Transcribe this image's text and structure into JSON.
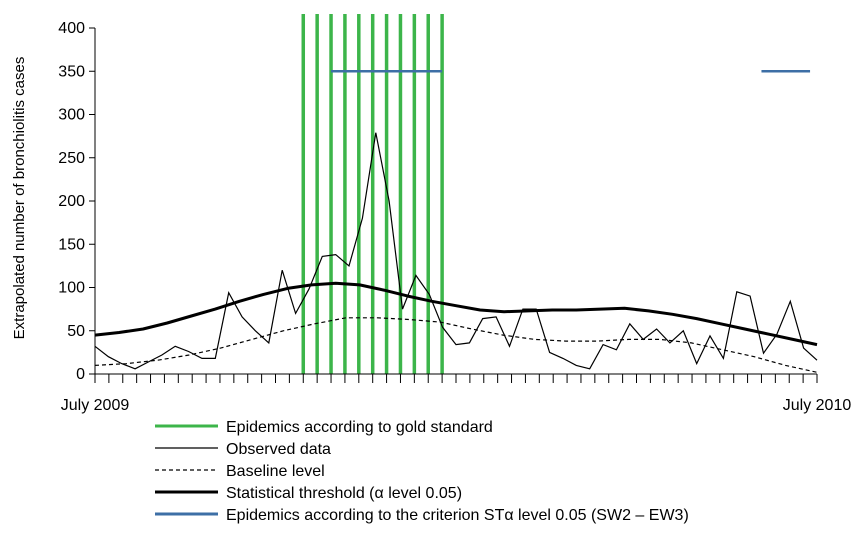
{
  "chart_data": {
    "type": "line",
    "ylabel": "Extrapolated number of bronchiolitis cases",
    "y_ticks": [
      0,
      50,
      100,
      150,
      200,
      250,
      300,
      350,
      400
    ],
    "ylim": [
      0,
      400
    ],
    "x_tick_labels": {
      "start": "July 2009",
      "end": "July 2010"
    },
    "x_week_range": [
      0,
      52
    ],
    "grid": false,
    "legend_position": "bottom",
    "gold_standard_epidemic_weeks": [
      15,
      16,
      17,
      18,
      19,
      20,
      21,
      22,
      23,
      24,
      25
    ],
    "criterion_epidemic_segments": [
      {
        "week_start": 17,
        "week_end": 25,
        "y": 350
      },
      {
        "week_start": 48,
        "week_end": 51.5,
        "y": 350
      }
    ],
    "series": [
      {
        "name": "Observed data",
        "style": "thin-solid",
        "values": [
          32,
          20,
          12,
          6,
          14,
          22,
          32,
          26,
          18,
          18,
          94,
          66,
          50,
          36,
          120,
          70,
          98,
          136,
          138,
          125,
          180,
          279,
          200,
          75,
          114,
          92,
          54,
          34,
          36,
          64,
          66,
          32,
          75,
          75,
          25,
          18,
          10,
          6,
          34,
          28,
          58,
          40,
          52,
          36,
          50,
          12,
          44,
          18,
          95,
          90,
          24,
          46,
          84,
          30,
          16
        ]
      },
      {
        "name": "Baseline level",
        "style": "dashed",
        "values": [
          10,
          12,
          16,
          22,
          30,
          40,
          50,
          58,
          65,
          65,
          63,
          60,
          52,
          45,
          40,
          38,
          38,
          40,
          40,
          36,
          28,
          20,
          10,
          2
        ]
      },
      {
        "name": "Statistical threshold (α level 0.05)",
        "style": "thick-solid",
        "values": [
          45,
          48,
          52,
          59,
          67,
          75,
          84,
          92,
          99,
          103,
          105,
          103,
          97,
          90,
          84,
          79,
          74,
          72,
          73,
          74,
          74,
          75,
          76,
          73,
          69,
          64,
          58,
          52,
          46,
          40,
          34
        ]
      }
    ],
    "legend": [
      {
        "label": "Epidemics according to gold standard",
        "color": "#3cb54a",
        "style": "solid"
      },
      {
        "label": "Observed data",
        "color": "#000000",
        "style": "thin"
      },
      {
        "label": "Baseline level",
        "color": "#000000",
        "style": "dashed"
      },
      {
        "label": "Statistical threshold (α level 0.05)",
        "color": "#000000",
        "style": "thick"
      },
      {
        "label": "Epidemics according to the criterion STα level 0.05 (SW2 – EW3)",
        "color": "#3d6fa6",
        "style": "solid"
      }
    ],
    "colors": {
      "gold_standard": "#3cb54a",
      "criterion": "#3d6fa6",
      "line": "#000000"
    }
  }
}
